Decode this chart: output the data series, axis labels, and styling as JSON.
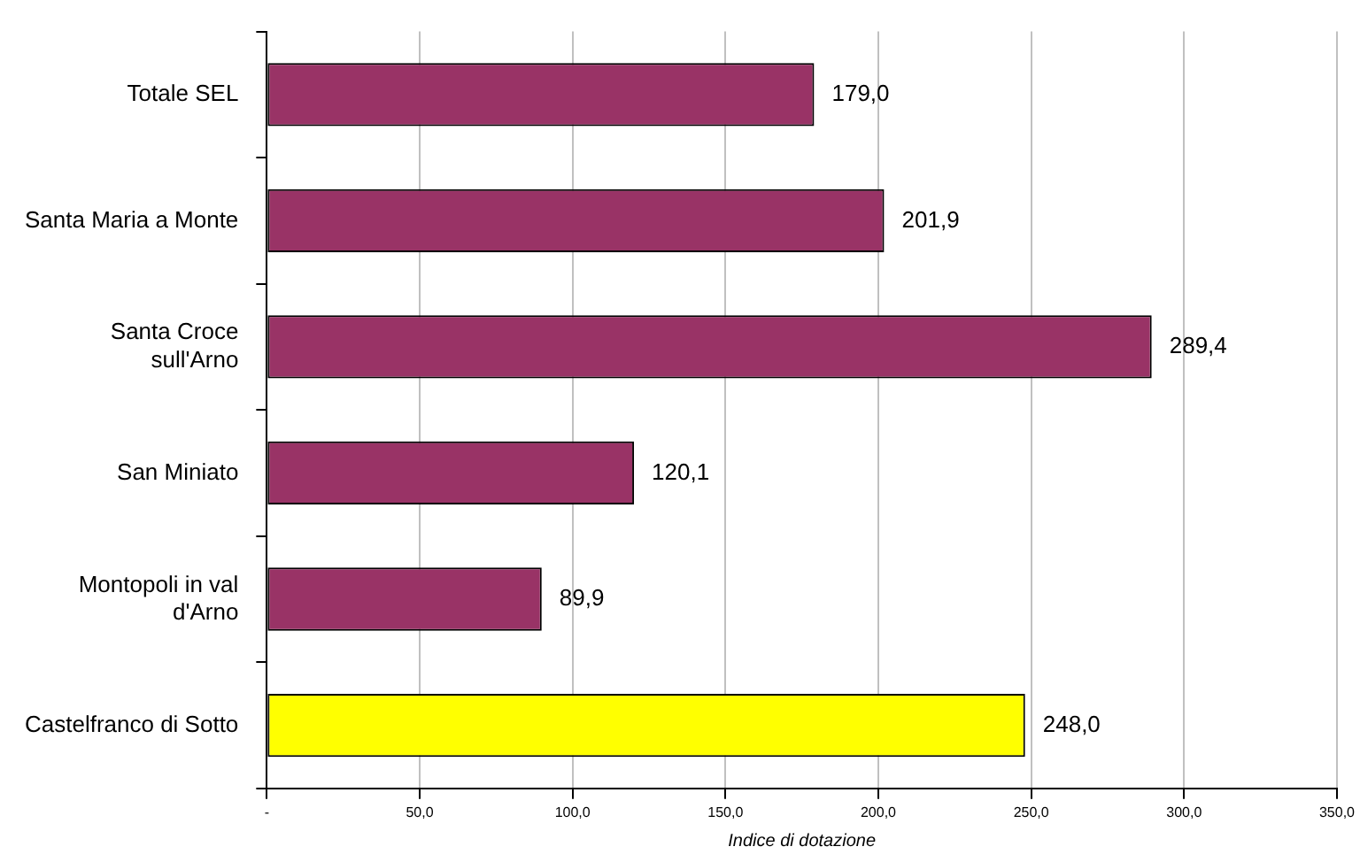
{
  "chart_data": {
    "type": "bar",
    "orientation": "horizontal",
    "xlabel": "Indice di dotazione",
    "categories": [
      "Totale SEL",
      "Santa Maria a Monte",
      "Santa Croce\nsull'Arno",
      "San Miniato",
      "Montopoli in val\nd'Arno",
      "Castelfranco di Sotto"
    ],
    "values": [
      179.0,
      201.9,
      289.4,
      120.1,
      89.9,
      248.0
    ],
    "colors": [
      "#993366",
      "#993366",
      "#993366",
      "#993366",
      "#993366",
      "#ffff00"
    ],
    "value_labels": [
      "179,0",
      "201,9",
      "289,4",
      "120,1",
      "89,9",
      "248,0"
    ],
    "xlim": [
      0,
      350
    ],
    "xticks": [
      {
        "value": 0,
        "label": "-"
      },
      {
        "value": 50,
        "label": "50,0"
      },
      {
        "value": 100,
        "label": "100,0"
      },
      {
        "value": 150,
        "label": "150,0"
      },
      {
        "value": 200,
        "label": "200,0"
      },
      {
        "value": 250,
        "label": "250,0"
      },
      {
        "value": 300,
        "label": "300,0"
      },
      {
        "value": 350,
        "label": "350,0"
      }
    ],
    "grid": "x",
    "legend": false
  }
}
